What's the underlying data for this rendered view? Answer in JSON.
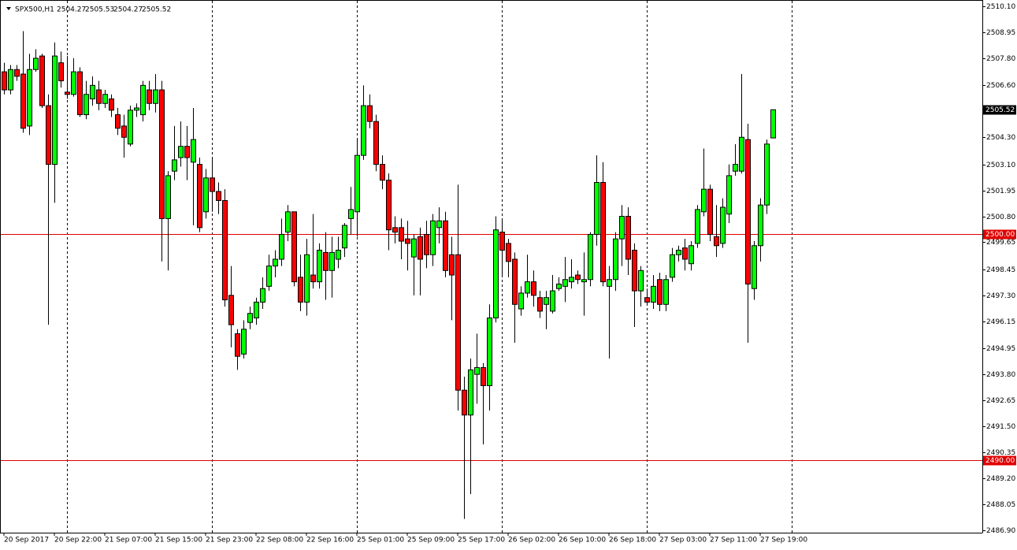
{
  "chart_data": {
    "type": "candlestick",
    "title": "SPX500,H1",
    "categories": [
      "20 Sep 2017",
      null,
      null,
      null,
      null,
      null,
      null,
      null,
      "20 Sep 22:00",
      null,
      null,
      null,
      null,
      null,
      null,
      null,
      "21 Sep 07:00",
      null,
      null,
      null,
      null,
      null,
      null,
      null,
      "21 Sep 15:00",
      null,
      null,
      null,
      null,
      null,
      null,
      null,
      "21 Sep 23:00",
      null,
      null,
      null,
      null,
      null,
      null,
      null,
      "22 Sep 08:00",
      null,
      null,
      null,
      null,
      null,
      null,
      null,
      "22 Sep 16:00",
      null,
      null,
      null,
      null,
      null,
      null,
      null,
      "25 Sep 01:00",
      null,
      null,
      null,
      null,
      null,
      null,
      null,
      "25 Sep 09:00",
      null,
      null,
      null,
      null,
      null,
      null,
      null,
      "25 Sep 17:00",
      null,
      null,
      null,
      null,
      null,
      null,
      null,
      "26 Sep 02:00",
      null,
      null,
      null,
      null,
      null,
      null,
      null,
      "26 Sep 10:00",
      null,
      null,
      null,
      null,
      null,
      null,
      null,
      "26 Sep 18:00",
      null,
      null,
      null,
      null,
      null,
      null,
      null,
      "27 Sep 03:00",
      null,
      null,
      null,
      null,
      null,
      null,
      null,
      "27 Sep 11:00",
      null,
      null,
      null,
      null,
      null,
      null,
      null,
      "27 Sep 19:00",
      null,
      null
    ],
    "open": [
      2507.2,
      2506.4,
      2507.3,
      2507.1,
      2504.8,
      2507.3,
      2507.9,
      2505.7,
      2503.1,
      2507.6,
      2506.3,
      2506.2,
      2507.2,
      2505.3,
      2506.0,
      2506.4,
      2505.8,
      2506.0,
      2505.3,
      2504.8,
      2504.0,
      2505.5,
      2505.3,
      2506.4,
      2505.8,
      2506.4,
      2500.7,
      2502.8,
      2503.4,
      2503.9,
      2503.2,
      2503.1,
      2501.0,
      2502.5,
      2501.9,
      2501.5,
      2497.3,
      2495.6,
      2494.7,
      2496.1,
      2496.3,
      2497.0,
      2497.7,
      2498.6,
      2498.9,
      2500.1,
      2501.0,
      2498.1,
      2497.0,
      2498.2,
      2497.9,
      2499.2,
      2498.4,
      2498.9,
      2499.4,
      2500.7,
      2501.0,
      2503.5,
      2505.7,
      2505.0,
      2503.1,
      2502.4,
      2500.3,
      2500.3,
      2499.8,
      2499.0,
      2499.9,
      2500.0,
      2499.1,
      2500.3,
      2500.6,
      2499.1,
      2499.1,
      2493.1,
      2492.0,
      2493.8,
      2494.1,
      2493.3,
      2496.3,
      2500.1,
      2499.6,
      2498.9,
      2496.7,
      2497.4,
      2497.9,
      2497.2,
      2496.9,
      2496.6,
      2497.6,
      2497.7,
      2497.9,
      2498.2,
      2497.9,
      2498.0,
      2500.0,
      2502.3,
      2497.7,
      2498.0,
      2499.8,
      2500.8,
      2499.3,
      2497.5,
      2497.2,
      2497.0,
      2498.0,
      2496.9,
      2498.1,
      2499.1,
      2499.4,
      2498.7,
      2499.6,
      2501.0,
      2502.0,
      2499.9,
      2499.6,
      2500.9,
      2502.8,
      2502.8,
      2504.2,
      2497.6,
      2499.5,
      2501.3,
      2504.27
    ],
    "high": [
      2507.6,
      2507.5,
      2507.5,
      2509.0,
      2508.0,
      2508.2,
      2508.0,
      2506.2,
      2508.5,
      2508.1,
      2507.9,
      2507.8,
      2507.4,
      2506.8,
      2507.0,
      2506.8,
      2506.4,
      2506.2,
      2505.6,
      2505.3,
      2505.7,
      2505.8,
      2506.8,
      2506.8,
      2507.1,
      2506.8,
      2502.8,
      2504.8,
      2505.0,
      2504.8,
      2505.6,
      2503.4,
      2502.9,
      2503.4,
      2502.3,
      2502.0,
      2498.6,
      2495.8,
      2496.2,
      2496.8,
      2497.2,
      2498.1,
      2499.1,
      2499.3,
      2500.7,
      2501.3,
      2501.0,
      2499.1,
      2499.8,
      2500.9,
      2499.6,
      2500.1,
      2499.9,
      2499.9,
      2500.5,
      2502.1,
      2504.2,
      2506.6,
      2506.2,
      2505.3,
      2503.5,
      2502.7,
      2500.8,
      2500.7,
      2500.6,
      2500.0,
      2500.3,
      2500.6,
      2500.9,
      2501.2,
      2501.0,
      2499.9,
      2502.2,
      2493.7,
      2494.5,
      2495.6,
      2494.3,
      2496.9,
      2500.8,
      2500.7,
      2499.8,
      2499.2,
      2497.7,
      2499.1,
      2498.4,
      2497.5,
      2497.5,
      2498.2,
      2498.1,
      2499.0,
      2498.9,
      2498.4,
      2499.2,
      2500.1,
      2503.5,
      2503.2,
      2498.6,
      2500.1,
      2501.3,
      2501.2,
      2499.6,
      2498.6,
      2497.6,
      2498.2,
      2498.3,
      2498.2,
      2499.4,
      2499.5,
      2499.8,
      2499.7,
      2501.3,
      2503.8,
      2502.2,
      2501.3,
      2501.6,
      2503.1,
      2504.0,
      2507.1,
      2504.9,
      2499.7,
      2501.6,
      2504.2,
      2505.53
    ],
    "low": [
      2506.2,
      2506.2,
      2506.8,
      2504.5,
      2504.4,
      2507.2,
      2505.6,
      2496.0,
      2501.4,
      2506.5,
      2506.0,
      2506.1,
      2505.2,
      2505.1,
      2505.7,
      2505.5,
      2505.6,
      2505.2,
      2504.4,
      2503.4,
      2503.9,
      2505.2,
      2505.0,
      2505.5,
      2505.4,
      2498.8,
      2498.4,
      2502.4,
      2503.0,
      2502.4,
      2500.4,
      2500.1,
      2500.7,
      2501.0,
      2500.9,
      2496.8,
      2495.0,
      2494.0,
      2494.5,
      2495.8,
      2496.0,
      2496.7,
      2497.5,
      2498.1,
      2498.6,
      2499.7,
      2497.7,
      2496.6,
      2496.4,
      2497.6,
      2497.6,
      2497.1,
      2497.2,
      2498.5,
      2499.0,
      2500.0,
      2499.9,
      2503.3,
      2504.7,
      2502.8,
      2502.0,
      2499.3,
      2499.6,
      2498.9,
      2498.4,
      2497.3,
      2497.3,
      2498.5,
      2498.6,
      2499.6,
      2498.1,
      2496.2,
      2492.2,
      2487.4,
      2488.5,
      2492.5,
      2490.7,
      2492.2,
      2496.1,
      2498.2,
      2498.1,
      2495.2,
      2496.4,
      2497.2,
      2496.8,
      2496.3,
      2495.8,
      2496.5,
      2497.5,
      2497.0,
      2497.6,
      2497.8,
      2496.4,
      2497.7,
      2499.5,
      2497.7,
      2494.5,
      2497.5,
      2498.6,
      2498.2,
      2495.9,
      2496.8,
      2496.9,
      2496.7,
      2496.6,
      2496.6,
      2497.9,
      2498.8,
      2498.4,
      2498.4,
      2499.4,
      2500.8,
      2499.7,
      2499.0,
      2499.4,
      2500.5,
      2502.6,
      2502.7,
      2495.2,
      2497.1,
      2498.8,
      2500.9,
      2504.27
    ],
    "close": [
      2506.4,
      2507.3,
      2507.0,
      2504.7,
      2507.3,
      2507.8,
      2505.7,
      2503.1,
      2507.9,
      2506.8,
      2506.2,
      2507.2,
      2505.3,
      2506.2,
      2506.6,
      2505.8,
      2506.2,
      2505.5,
      2504.7,
      2504.3,
      2505.5,
      2505.6,
      2506.6,
      2505.8,
      2506.4,
      2500.7,
      2502.6,
      2503.3,
      2503.9,
      2503.4,
      2504.2,
      2500.3,
      2502.5,
      2501.9,
      2501.5,
      2497.1,
      2496.0,
      2494.6,
      2495.8,
      2496.5,
      2497.0,
      2497.6,
      2498.6,
      2498.9,
      2500.0,
      2501.0,
      2497.9,
      2497.0,
      2499.1,
      2497.9,
      2499.3,
      2498.4,
      2499.2,
      2499.3,
      2500.4,
      2501.1,
      2503.5,
      2505.7,
      2505.0,
      2503.1,
      2502.4,
      2500.2,
      2500.1,
      2499.7,
      2499.6,
      2499.8,
      2498.9,
      2499.1,
      2500.6,
      2500.6,
      2498.4,
      2498.2,
      2493.1,
      2492.0,
      2494.0,
      2494.1,
      2493.3,
      2496.3,
      2500.2,
      2499.3,
      2498.8,
      2496.9,
      2497.4,
      2497.9,
      2497.3,
      2496.6,
      2497.2,
      2497.5,
      2497.8,
      2498.0,
      2498.1,
      2498.0,
      2498.0,
      2500.0,
      2502.3,
      2497.9,
      2498.0,
      2499.8,
      2500.8,
      2498.9,
      2497.5,
      2498.4,
      2497.0,
      2497.7,
      2496.9,
      2498.0,
      2499.1,
      2499.3,
      2498.9,
      2499.5,
      2501.1,
      2502.0,
      2500.0,
      2499.5,
      2501.2,
      2502.6,
      2503.1,
      2504.3,
      2497.8,
      2499.5,
      2501.3,
      2504.0,
      2505.52
    ],
    "up_color": "#00ff00",
    "down_color": "#ff0000",
    "level_color": "#e00000",
    "levels": [
      {
        "value": 2500,
        "label": "2500.00"
      },
      {
        "value": 2490,
        "label": "2490.00"
      }
    ],
    "ylim": [
      2486.79,
      2510.38
    ],
    "yticks": [
      {
        "value": 2510.1,
        "label": "2510.10"
      },
      2508.95,
      {
        "value": 2507.8,
        "label": "2507.80"
      },
      {
        "value": 2506.6,
        "label": "2506.60"
      },
      {
        "value": 2504.3,
        "label": "2504.30"
      },
      {
        "value": 2503.1,
        "label": "2503.10"
      },
      2501.95,
      {
        "value": 2500.8,
        "label": "2500.80"
      },
      2499.65,
      2498.45,
      {
        "value": 2497.3,
        "label": "2497.30"
      },
      2496.15,
      2494.95,
      {
        "value": 2493.8,
        "label": "2493.80"
      },
      2492.65,
      {
        "value": 2491.5,
        "label": "2491.50"
      },
      2490.35,
      {
        "value": 2489.2,
        "label": "2489.20"
      },
      2488.05,
      {
        "value": 2486.9,
        "label": "2486.90"
      }
    ]
  }
}
